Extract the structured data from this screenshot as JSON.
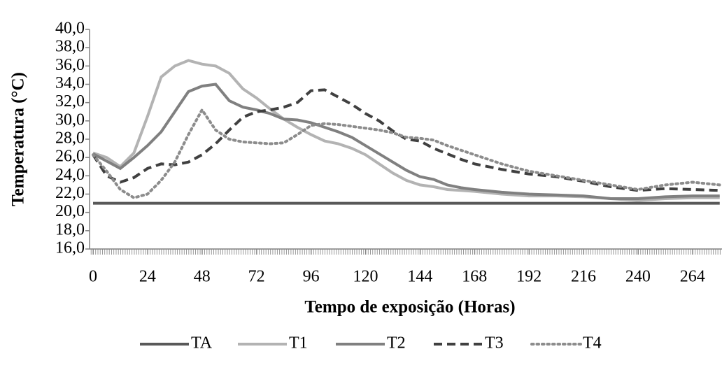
{
  "chart_data": {
    "type": "line",
    "y_label": "Temperatura (°C)",
    "x_label": "Tempo de exposição (Horas)",
    "x": [
      0,
      6,
      12,
      18,
      24,
      30,
      36,
      42,
      48,
      54,
      60,
      66,
      72,
      78,
      84,
      90,
      96,
      102,
      108,
      114,
      120,
      126,
      132,
      138,
      144,
      150,
      156,
      162,
      168,
      180,
      192,
      204,
      216,
      228,
      240,
      252,
      264,
      276
    ],
    "xlim": [
      0,
      277
    ],
    "xticks": [
      0,
      24,
      48,
      72,
      96,
      120,
      144,
      168,
      192,
      216,
      240,
      264
    ],
    "ylim": [
      16,
      40
    ],
    "yticks": [
      {
        "value": 16,
        "label": "16,0"
      },
      {
        "value": 18,
        "label": "18,0"
      },
      {
        "value": 20,
        "label": "20,0"
      },
      {
        "value": 22,
        "label": "22,0"
      },
      {
        "value": 24,
        "label": "24,0"
      },
      {
        "value": 26,
        "label": "26,0"
      },
      {
        "value": 28,
        "label": "28,0"
      },
      {
        "value": 30,
        "label": "30,0"
      },
      {
        "value": 32,
        "label": "32,0"
      },
      {
        "value": 34,
        "label": "34,0"
      },
      {
        "value": 36,
        "label": "36,0"
      },
      {
        "value": 38,
        "label": "38,0"
      },
      {
        "value": 40,
        "label": "40,0"
      }
    ],
    "legend": "bottom",
    "series": [
      {
        "name": "TA",
        "color": "#595959",
        "style": "solid",
        "values": [
          21,
          21,
          21,
          21,
          21,
          21,
          21,
          21,
          21,
          21,
          21,
          21,
          21,
          21,
          21,
          21,
          21,
          21,
          21,
          21,
          21,
          21,
          21,
          21,
          21,
          21,
          21,
          21,
          21,
          21,
          21,
          21,
          21,
          21,
          21,
          21,
          21,
          21
        ]
      },
      {
        "name": "T1",
        "color": "#b3b3b3",
        "style": "solid",
        "values": [
          26.5,
          26,
          25,
          26.5,
          30.5,
          34.8,
          36,
          36.6,
          36.2,
          36,
          35.2,
          33.5,
          32.5,
          31.3,
          30.2,
          29.3,
          28.5,
          27.8,
          27.5,
          27,
          26.3,
          25.3,
          24.3,
          23.5,
          23,
          22.8,
          22.5,
          22.4,
          22.3,
          22,
          21.8,
          21.8,
          21.7,
          21.5,
          21.3,
          21.5,
          21.6,
          21.6
        ]
      },
      {
        "name": "T2",
        "color": "#808080",
        "style": "solid",
        "values": [
          26.4,
          25.6,
          24.8,
          26,
          27.3,
          28.8,
          31,
          33.2,
          33.8,
          34,
          32.2,
          31.5,
          31.2,
          30.8,
          30.2,
          30.1,
          29.8,
          29.3,
          28.8,
          28.2,
          27.3,
          26.4,
          25.5,
          24.6,
          23.9,
          23.6,
          23,
          22.7,
          22.5,
          22.2,
          22,
          21.9,
          21.8,
          21.5,
          21.5,
          21.7,
          21.8,
          21.8
        ]
      },
      {
        "name": "T3",
        "color": "#404040",
        "style": "dashed",
        "values": [
          26.3,
          24,
          23.3,
          23.8,
          24.8,
          25.3,
          25.2,
          25.5,
          26.3,
          27.5,
          29,
          30.4,
          31,
          31.2,
          31.5,
          32,
          33.3,
          33.4,
          32.6,
          31.8,
          30.8,
          30,
          28.9,
          28,
          27.8,
          27,
          26.4,
          25.8,
          25.3,
          24.7,
          24.2,
          23.9,
          23.4,
          22.8,
          22.4,
          22.6,
          22.5,
          22.4
        ]
      },
      {
        "name": "T4",
        "color": "#8c8c8c",
        "style": "dotted",
        "values": [
          26.3,
          24.5,
          22.5,
          21.6,
          22,
          23.5,
          25.5,
          28.5,
          31.2,
          29,
          28,
          27.7,
          27.6,
          27.5,
          27.6,
          28.5,
          29.5,
          29.7,
          29.6,
          29.4,
          29.2,
          29,
          28.7,
          28.2,
          28.1,
          27.9,
          27.3,
          26.8,
          26.3,
          25.3,
          24.5,
          24,
          23.5,
          23,
          22.5,
          23,
          23.3,
          23
        ]
      }
    ]
  }
}
